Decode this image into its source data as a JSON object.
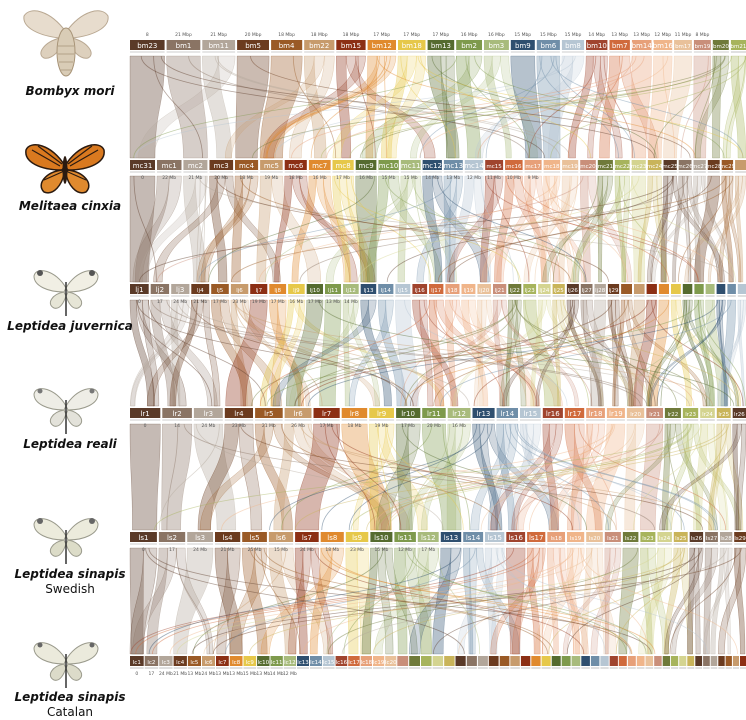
{
  "species": [
    {
      "name": "Bombyx mori",
      "subtitle": "",
      "prefix": "bm",
      "chroms": [
        23,
        1,
        11,
        5,
        4,
        22,
        15,
        12,
        18,
        13,
        2,
        3,
        9,
        6,
        8,
        10,
        7,
        14,
        16,
        17,
        19,
        20,
        21
      ],
      "sizes": [
        "8",
        "21 Mbp",
        "21 Mbp",
        "20 Mbp",
        "18 Mbp",
        "18 Mbp",
        "18 Mbp",
        "17 Mbp",
        "17 Mbp",
        "17 Mbp",
        "16 Mbp",
        "16 Mbp",
        "15 Mbp",
        "15 Mbp",
        "15 Mbp",
        "14 Mbp",
        "13 Mbp",
        "13 Mbp",
        "12 Mbp",
        "11 Mbp",
        "8 Mbp"
      ]
    },
    {
      "name": "Melitaea cinxia",
      "subtitle": "",
      "prefix": "mc",
      "chroms": [
        31,
        1,
        2,
        3,
        4,
        5,
        6,
        7,
        8,
        9,
        10,
        11,
        12,
        13,
        14,
        15,
        16,
        17,
        18,
        19,
        20,
        21,
        22,
        23,
        24,
        25,
        26,
        27,
        28,
        29,
        30
      ],
      "sizes": [
        "0",
        "22 Mb",
        "21 Mb",
        "20 Mb",
        "18 Mb",
        "19 Mb",
        "18 Mb",
        "16 Mb",
        "17 Mb",
        "16 Mb",
        "15 Mb",
        "15 Mb",
        "14 Mb",
        "13 Mb",
        "12 Mb",
        "11 Mb",
        "10 Mb",
        "9 Mb"
      ]
    },
    {
      "name": "Leptidea juvernica",
      "subtitle": "",
      "prefix": "lj",
      "chroms": [
        1,
        2,
        3,
        4,
        5,
        6,
        7,
        8,
        9,
        10,
        11,
        12,
        13,
        14,
        15,
        16,
        17,
        18,
        19,
        20,
        21,
        22,
        23,
        24,
        25,
        26,
        27,
        28,
        29,
        30,
        31,
        32,
        33,
        34,
        35,
        36,
        37,
        38,
        39,
        40
      ],
      "sizes": [
        "0",
        "17",
        "24 Mb",
        "21 Mb",
        "17 Mb",
        "23 Mb",
        "19 Mb",
        "17 Mb",
        "16 Mb",
        "17 Mb",
        "13 Mb",
        "14 Mb"
      ]
    },
    {
      "name": "Leptidea reali",
      "subtitle": "",
      "prefix": "lr",
      "chroms": [
        1,
        2,
        3,
        4,
        5,
        6,
        7,
        8,
        9,
        10,
        11,
        12,
        13,
        14,
        15,
        16,
        17,
        18,
        19,
        20,
        21,
        22,
        23,
        24,
        25,
        26
      ],
      "sizes": [
        "0",
        "14",
        "24 Mb",
        "23 Mb",
        "21 Mb",
        "26 Mb",
        "17 Mb",
        "18 Mb",
        "19 Mb",
        "17 Mb",
        "20 Mb",
        "16 Mb"
      ]
    },
    {
      "name": "Leptidea sinapis",
      "subtitle": "Swedish",
      "prefix": "ls",
      "chroms": [
        1,
        2,
        3,
        4,
        5,
        6,
        7,
        8,
        9,
        10,
        11,
        12,
        13,
        14,
        15,
        16,
        17,
        18,
        19,
        20,
        21,
        22,
        23,
        24,
        25,
        26,
        27,
        28,
        29
      ],
      "sizes": [
        "0",
        "17",
        "24 Mb",
        "21 Mb",
        "25 Mb",
        "15 Mb",
        "24 Mb",
        "18 Mb",
        "23 Mb",
        "15 Mb",
        "12 Mb",
        "17 Mb"
      ]
    },
    {
      "name": "Leptidea sinapis",
      "subtitle": "Catalan",
      "prefix": "lc",
      "chroms": [
        1,
        2,
        3,
        4,
        5,
        6,
        7,
        8,
        9,
        10,
        11,
        12,
        13,
        14,
        15,
        16,
        17,
        18,
        19,
        20,
        21,
        22,
        23,
        24,
        25,
        26,
        27,
        28,
        29,
        30,
        31,
        32,
        33,
        34,
        35,
        36,
        37,
        38,
        39,
        40,
        41,
        42,
        43,
        44,
        45,
        46,
        47,
        48,
        49,
        50,
        51,
        52,
        53,
        54,
        55,
        56,
        57
      ],
      "sizes": [
        "0",
        "17",
        "24 Mb",
        "21 Mb",
        "13 Mb",
        "24 Mb",
        "13 Mb",
        "13 Mb",
        "15 Mb",
        "13 Mb",
        "14 Mb",
        "12 Mb"
      ]
    }
  ],
  "palette": [
    "#5a3a28",
    "#8a7464",
    "#b2a69a",
    "#6b3b1f",
    "#9a5a26",
    "#c79b6c",
    "#8c2f14",
    "#e08a2e",
    "#e6c84a",
    "#556b2f",
    "#7e9a4c",
    "#a8bb7c",
    "#2f4f6f",
    "#6f8ea8",
    "#b6c6d3",
    "#a0442e",
    "#d06a3c",
    "#e7a079",
    "#f0b58a",
    "#e9c19a",
    "#c98f7a",
    "#6f7a3a",
    "#a7b45c",
    "#d4d490",
    "#c9b45a"
  ]
}
